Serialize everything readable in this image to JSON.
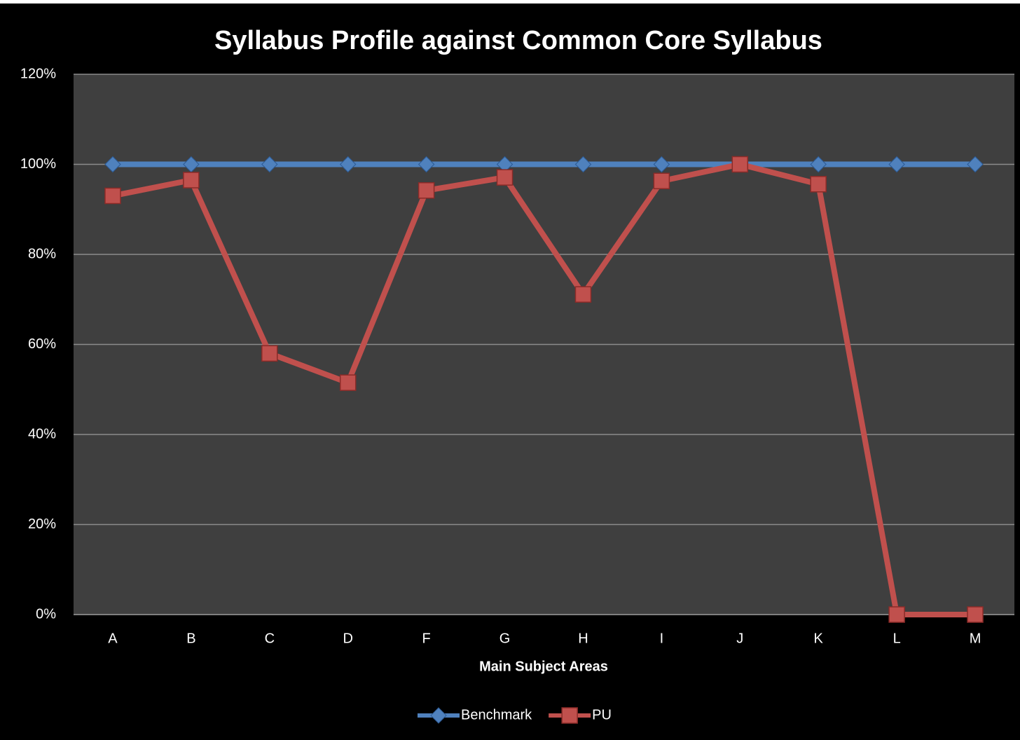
{
  "chart_data": {
    "type": "line",
    "title": "Syllabus Profile against Common Core Syllabus",
    "x_label": "Main Subject Areas",
    "categories": [
      "A",
      "B",
      "C",
      "D",
      "F",
      "G",
      "H",
      "I",
      "J",
      "K",
      "L",
      "M"
    ],
    "series": [
      {
        "name": "Benchmark",
        "color": "#4f81bd",
        "marker": "diamond",
        "values": [
          100,
          100,
          100,
          100,
          100,
          100,
          100,
          100,
          100,
          100,
          100,
          100
        ]
      },
      {
        "name": "PU",
        "color": "#c0504d",
        "marker": "square",
        "values": [
          93,
          96.5,
          58,
          51.5,
          94.2,
          97.1,
          71.1,
          96.3,
          100,
          95.6,
          0,
          0
        ]
      }
    ],
    "ylim": [
      0,
      120
    ],
    "yticks": [
      {
        "value": 0,
        "label": "0%"
      },
      {
        "value": 20,
        "label": "20%"
      },
      {
        "value": 40,
        "label": "40%"
      },
      {
        "value": 60,
        "label": "60%"
      },
      {
        "value": 80,
        "label": "80%"
      },
      {
        "value": 100,
        "label": "100%"
      },
      {
        "value": 120,
        "label": "120%"
      }
    ],
    "grid": true,
    "legend": "bottom"
  }
}
